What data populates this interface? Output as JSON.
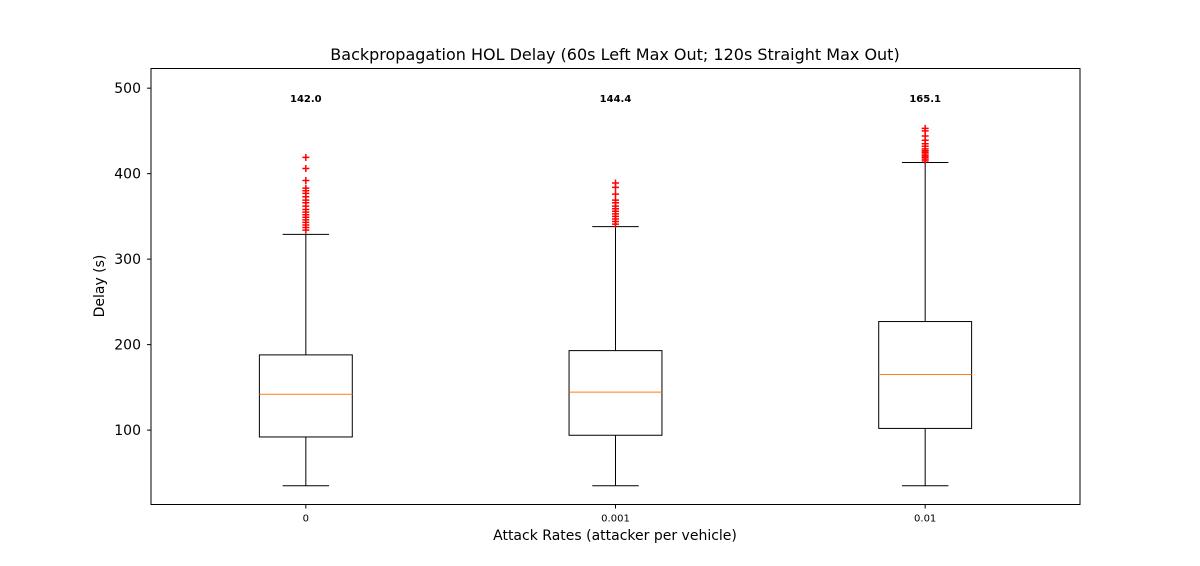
{
  "chart_data": {
    "type": "box",
    "title": "Backpropagation HOL Delay (60s Left Max Out; 120s Straight Max Out)",
    "xlabel": "Attack Rates (attacker per vehicle)",
    "ylabel": "Delay (s)",
    "categories": [
      "0",
      "0.001",
      "0.01"
    ],
    "yticks": [
      100,
      200,
      300,
      400,
      500
    ],
    "ylim": [
      13,
      523
    ],
    "grid": false,
    "boxes": [
      {
        "category": "0",
        "whisker_low": 35,
        "q1": 92,
        "median": 142.0,
        "q3": 188,
        "whisker_high": 329,
        "median_label": "142.0",
        "outliers": [
          334,
          337,
          340,
          343,
          346,
          349,
          352,
          355,
          358,
          362,
          366,
          369,
          373,
          377,
          380,
          383,
          392,
          406,
          419
        ]
      },
      {
        "category": "0.001",
        "whisker_low": 35,
        "q1": 94,
        "median": 144.4,
        "q3": 193,
        "whisker_high": 338,
        "median_label": "144.4",
        "outliers": [
          341,
          344,
          347,
          350,
          353,
          356,
          359,
          362,
          366,
          369,
          376,
          384,
          389
        ]
      },
      {
        "category": "0.01",
        "whisker_low": 35,
        "q1": 102,
        "median": 165.1,
        "q3": 227,
        "whisker_high": 413,
        "median_label": "165.1",
        "outliers": [
          415,
          417,
          419,
          421,
          423,
          425,
          427,
          429,
          432,
          435,
          439,
          444,
          450,
          453
        ]
      }
    ],
    "colors": {
      "box": "#000000",
      "median": "#ff7f0e",
      "outlier": "#ff0000"
    }
  }
}
